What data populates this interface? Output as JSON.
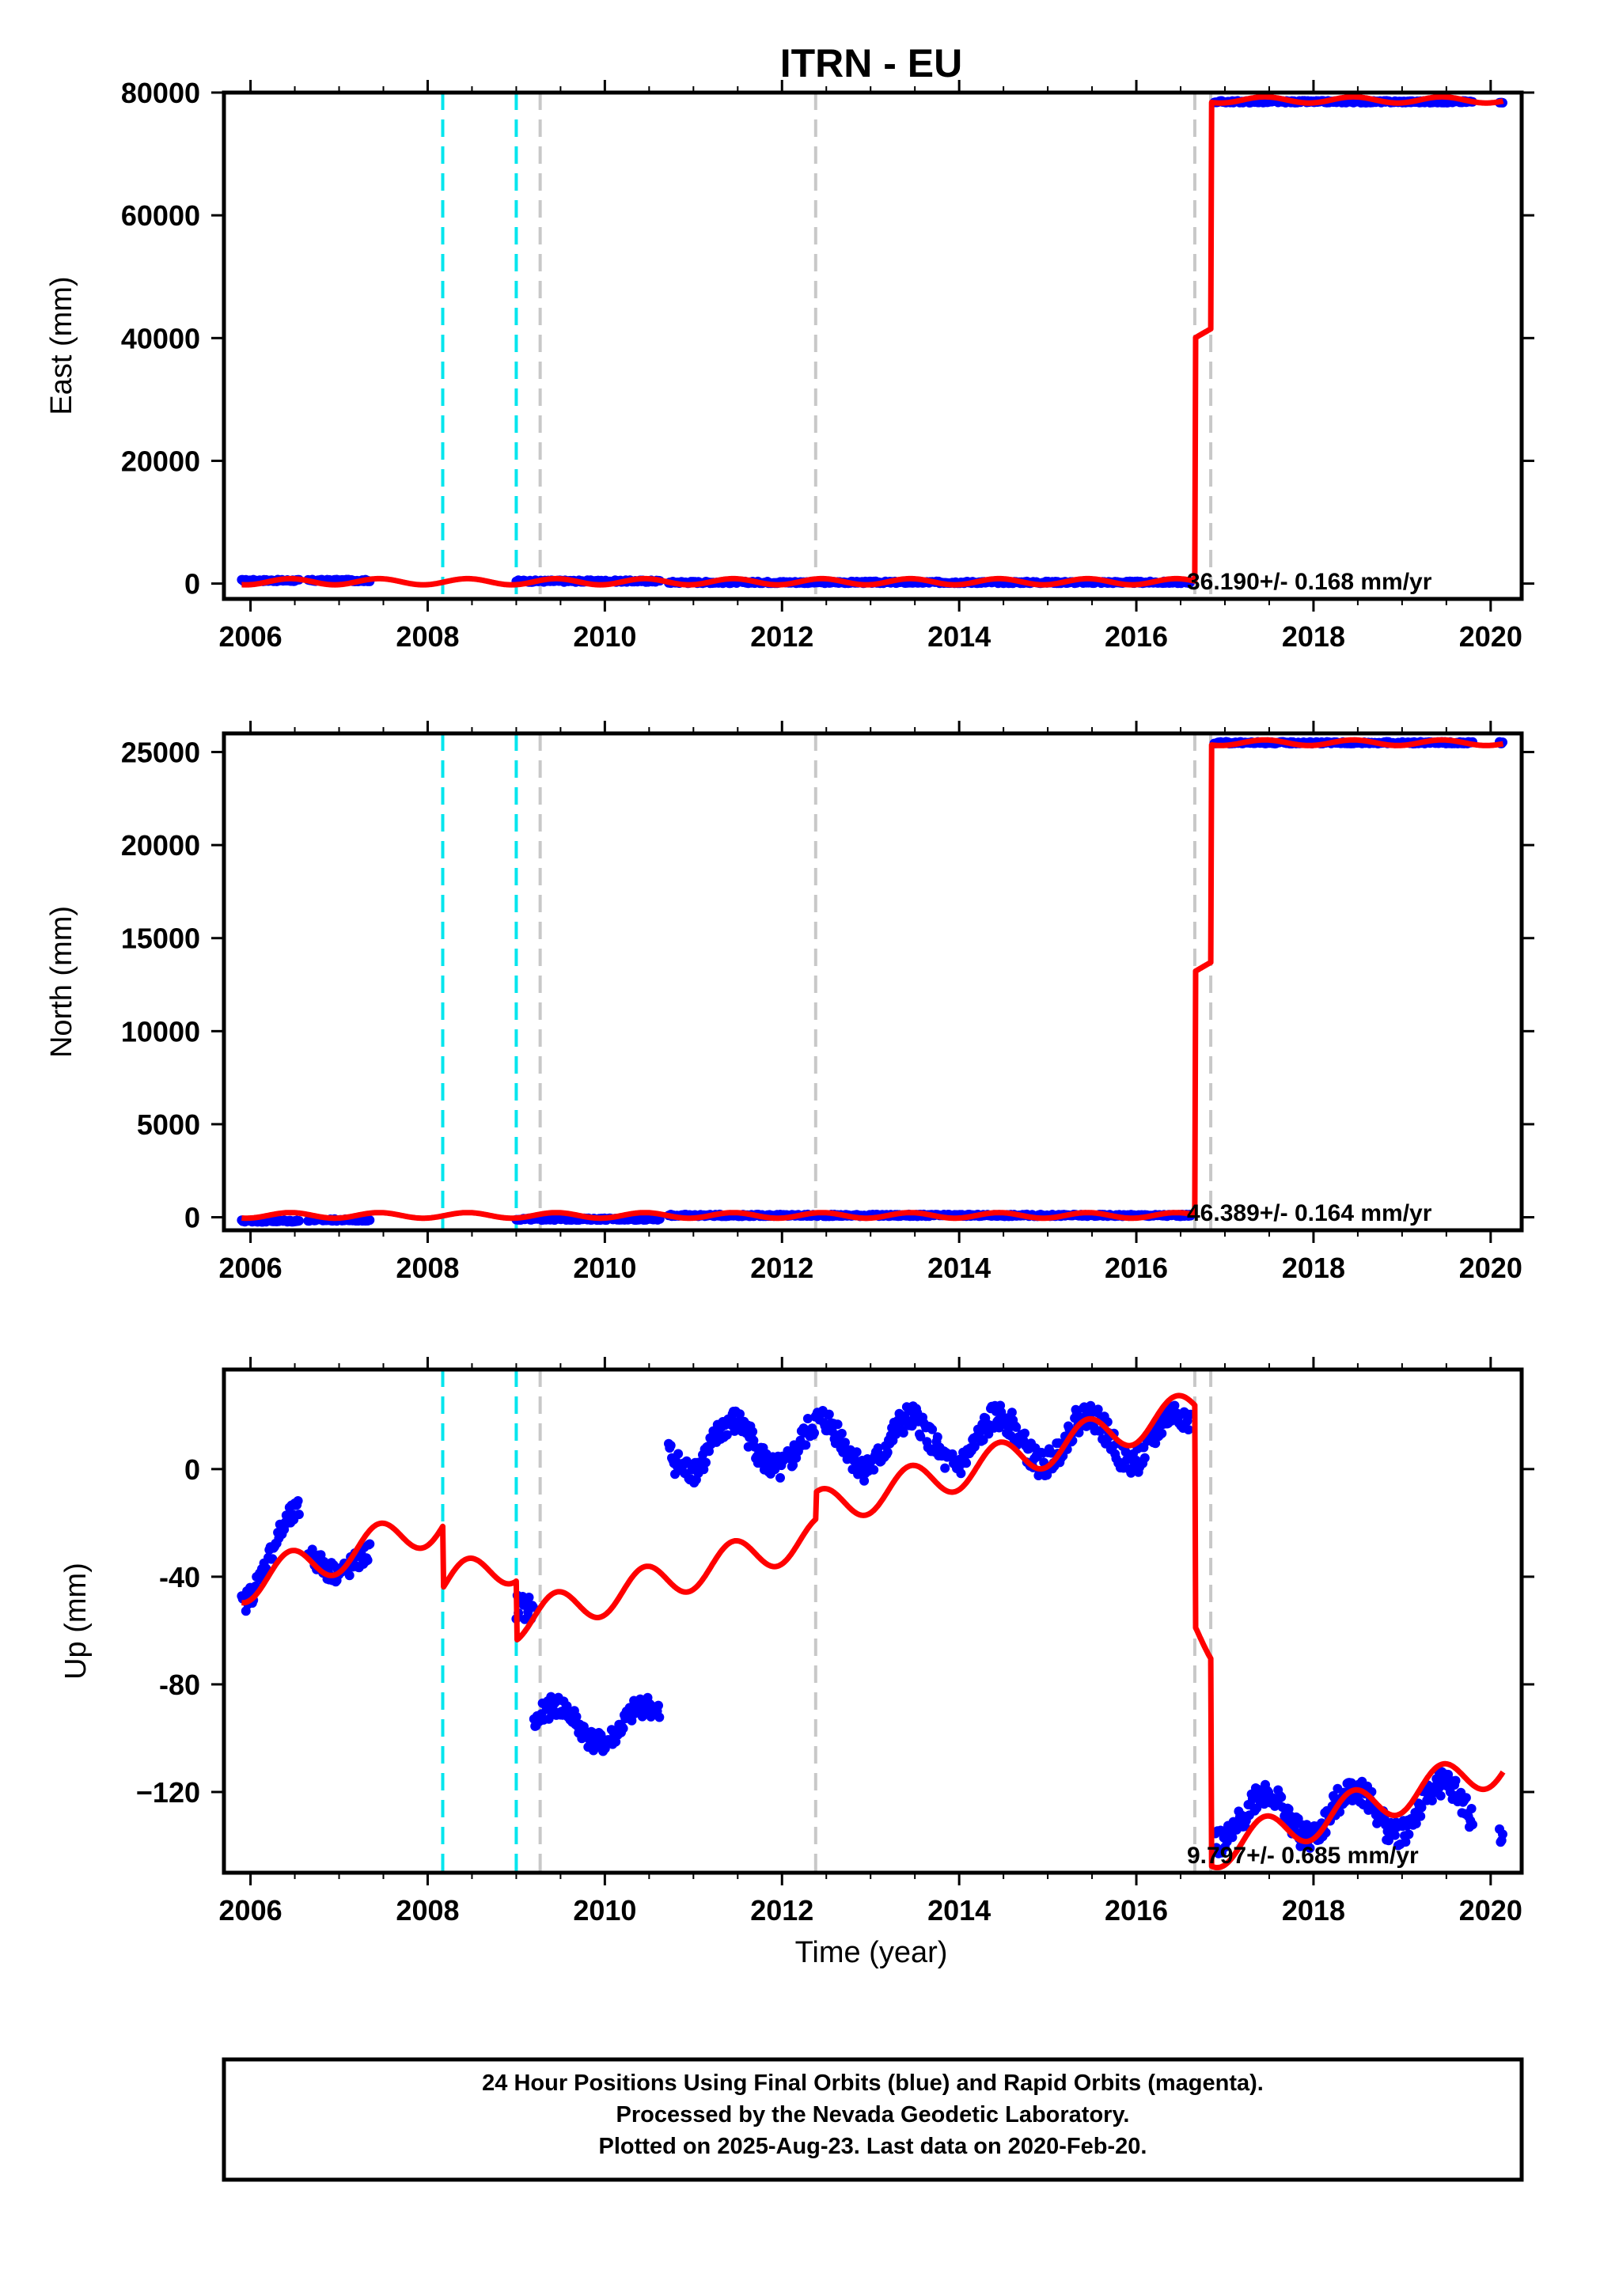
{
  "title": "ITRN - EU",
  "xlabel": "Time (year)",
  "caption": {
    "lines": [
      "24 Hour Positions Using Final Orbits (blue) and Rapid Orbits (magenta).",
      "Processed by the Nevada Geodetic Laboratory.",
      "Plotted on 2025-Aug-23. Last data on 2020-Feb-20."
    ]
  },
  "colors": {
    "data_points": "#0000ff",
    "model_line": "#ff0000",
    "antenna_change": "#00e5ee",
    "equipment_change": "#c8c8c8"
  },
  "chart_data": [
    {
      "type": "scatter",
      "panel": "east",
      "ylabel": "East (mm)",
      "xlim": [
        2005.7,
        2020.35
      ],
      "ylim": [
        -2500,
        80000
      ],
      "xticks": [
        2006,
        2008,
        2010,
        2012,
        2014,
        2016,
        2018,
        2020
      ],
      "yticks": [
        0,
        20000,
        40000,
        60000,
        80000
      ],
      "ytick_labels": [
        "0",
        "20000",
        "40000",
        "60000",
        "80000"
      ],
      "rate_label": "36.190+/- 0.168 mm/yr",
      "cyan_events": [
        2008.17,
        2009.0
      ],
      "gray_events": [
        2009.27,
        2012.38,
        2016.66,
        2016.84
      ],
      "data_segments": [
        {
          "x_start": 2005.9,
          "x_end": 2006.55,
          "y": 500
        },
        {
          "x_start": 2006.65,
          "x_end": 2007.35,
          "y": 500
        },
        {
          "x_start": 2009.0,
          "x_end": 2010.62,
          "y": 400
        },
        {
          "x_start": 2010.72,
          "x_end": 2016.62,
          "y": 200
        },
        {
          "x_start": 2016.88,
          "x_end": 2019.8,
          "y": 78500
        },
        {
          "x_start": 2020.1,
          "x_end": 2020.14,
          "y": 78500
        }
      ],
      "model": {
        "x_start": 2005.9,
        "x_end": 2020.14,
        "seasonal_amplitude": 500,
        "steps": [
          {
            "x": 2016.66,
            "y_before": 300,
            "y_after": 40000
          },
          {
            "x": 2016.84,
            "y_before": 41500,
            "y_after": 78800
          }
        ]
      }
    },
    {
      "type": "scatter",
      "panel": "north",
      "ylabel": "North (mm)",
      "xlim": [
        2005.7,
        2020.35
      ],
      "ylim": [
        -700,
        26000
      ],
      "xticks": [
        2006,
        2008,
        2010,
        2012,
        2014,
        2016,
        2018,
        2020
      ],
      "yticks": [
        0,
        5000,
        10000,
        15000,
        20000,
        25000
      ],
      "ytick_labels": [
        "0",
        "5000",
        "10000",
        "15000",
        "20000",
        "25000"
      ],
      "rate_label": "46.389+/- 0.164 mm/yr",
      "cyan_events": [
        2008.17,
        2009.0
      ],
      "gray_events": [
        2009.27,
        2012.38,
        2016.66,
        2016.84
      ],
      "data_segments": [
        {
          "x_start": 2005.9,
          "x_end": 2006.55,
          "y": -200
        },
        {
          "x_start": 2006.65,
          "x_end": 2007.35,
          "y": -150
        },
        {
          "x_start": 2009.0,
          "x_end": 2010.62,
          "y": -100
        },
        {
          "x_start": 2010.72,
          "x_end": 2016.62,
          "y": 100
        },
        {
          "x_start": 2016.88,
          "x_end": 2019.8,
          "y": 25500
        },
        {
          "x_start": 2020.1,
          "x_end": 2020.14,
          "y": 25500
        }
      ],
      "model": {
        "x_start": 2005.9,
        "x_end": 2020.14,
        "seasonal_amplitude": 150,
        "steps": [
          {
            "x": 2016.66,
            "y_before": 100,
            "y_after": 13200
          },
          {
            "x": 2016.84,
            "y_before": 13700,
            "y_after": 25500
          }
        ]
      }
    },
    {
      "type": "scatter",
      "panel": "up",
      "ylabel": "Up (mm)",
      "xlim": [
        2005.7,
        2020.35
      ],
      "ylim": [
        -150,
        37
      ],
      "xticks": [
        2006,
        2008,
        2010,
        2012,
        2014,
        2016,
        2018,
        2020
      ],
      "yticks": [
        -120,
        -80,
        -40,
        0
      ],
      "ytick_labels": [
        "−120",
        "-80",
        "-40",
        "0"
      ],
      "rate_label": "9.797+/- 0.685 mm/yr",
      "cyan_events": [
        2008.17,
        2009.0
      ],
      "gray_events": [
        2009.27,
        2012.38,
        2016.66,
        2016.84
      ],
      "data_segments": [
        {
          "x_start": 2005.9,
          "x_end": 2006.55,
          "y_start": -45,
          "y_end": -20,
          "amp": 6,
          "noise": 4
        },
        {
          "x_start": 2006.65,
          "x_end": 2007.35,
          "y_start": -32,
          "y_end": -35,
          "amp": 5,
          "noise": 4
        },
        {
          "x_start": 2009.0,
          "x_end": 2009.2,
          "y_start": -48,
          "y_end": -52,
          "amp": 3,
          "noise": 5
        },
        {
          "x_start": 2009.2,
          "x_end": 2010.62,
          "y_start": -95,
          "y_end": -95,
          "amp": 7,
          "noise": 4
        },
        {
          "x_start": 2010.72,
          "x_end": 2016.62,
          "y_start": 8,
          "y_end": 12,
          "amp": 9,
          "noise": 5
        },
        {
          "x_start": 2016.88,
          "x_end": 2019.8,
          "y_start": -130,
          "y_end": -125,
          "amp": 9,
          "noise": 5
        },
        {
          "x_start": 2020.1,
          "x_end": 2020.14,
          "y_start": -135,
          "y_end": -135,
          "amp": 2,
          "noise": 3
        }
      ],
      "model": {
        "x_start": 2005.9,
        "x_end": 2020.14,
        "seasonal_amplitude": 7,
        "trend_segments": [
          {
            "x_start": 2005.9,
            "x_end": 2008.17,
            "y_start": -43,
            "y_end": -20
          },
          {
            "x_start": 2008.17,
            "x_end": 2009.0,
            "y_start": -43,
            "y_end": -35
          },
          {
            "x_start": 2009.0,
            "x_end": 2012.38,
            "y_start": -57,
            "y_end": -25
          },
          {
            "x_start": 2012.38,
            "x_end": 2016.66,
            "y_start": -15,
            "y_end": 22
          },
          {
            "x_start": 2016.66,
            "x_end": 2016.84,
            "y_start": -60,
            "y_end": -65
          },
          {
            "x_start": 2016.84,
            "x_end": 2020.14,
            "y_start": -142,
            "y_end": -110
          }
        ]
      }
    }
  ]
}
